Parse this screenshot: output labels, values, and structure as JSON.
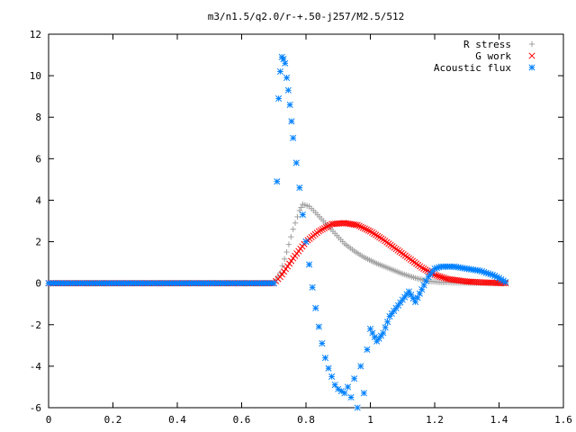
{
  "chart_data": {
    "type": "scatter",
    "title": "m3/n1.5/q2.0/r-+.50-j257/M2.5/512",
    "xlabel": "",
    "ylabel": "",
    "xlim": [
      0,
      1.6
    ],
    "ylim": [
      -6,
      12
    ],
    "x_ticks": [
      "0",
      "0.2",
      "0.4",
      "0.6",
      "0.8",
      "1",
      "1.2",
      "1.4",
      "1.6"
    ],
    "y_ticks": [
      "-6",
      "-4",
      "-2",
      "0",
      "2",
      "4",
      "6",
      "8",
      "10",
      "12"
    ],
    "grid": false,
    "legend_position": "top-right",
    "series": [
      {
        "name": "R stress",
        "marker": "plus",
        "color": "#a0a0a0",
        "points": [
          [
            0.0,
            0
          ],
          [
            0.7,
            0.0
          ],
          [
            0.72,
            0.5
          ],
          [
            0.74,
            1.5
          ],
          [
            0.76,
            2.6
          ],
          [
            0.78,
            3.5
          ],
          [
            0.79,
            3.8
          ],
          [
            0.81,
            3.7
          ],
          [
            0.83,
            3.4
          ],
          [
            0.86,
            2.9
          ],
          [
            0.89,
            2.4
          ],
          [
            0.92,
            1.9
          ],
          [
            0.95,
            1.55
          ],
          [
            0.98,
            1.25
          ],
          [
            1.02,
            0.95
          ],
          [
            1.06,
            0.7
          ],
          [
            1.1,
            0.45
          ],
          [
            1.14,
            0.25
          ],
          [
            1.18,
            0.1
          ],
          [
            1.22,
            0.04
          ],
          [
            1.3,
            0.01
          ],
          [
            1.42,
            0.0
          ]
        ]
      },
      {
        "name": "G work",
        "marker": "cross",
        "color": "#ff0000",
        "points": [
          [
            0.0,
            0
          ],
          [
            0.7,
            0.0
          ],
          [
            0.72,
            0.3
          ],
          [
            0.76,
            1.2
          ],
          [
            0.8,
            2.0
          ],
          [
            0.84,
            2.5
          ],
          [
            0.88,
            2.85
          ],
          [
            0.92,
            2.9
          ],
          [
            0.96,
            2.8
          ],
          [
            1.0,
            2.5
          ],
          [
            1.04,
            2.1
          ],
          [
            1.08,
            1.65
          ],
          [
            1.12,
            1.2
          ],
          [
            1.16,
            0.75
          ],
          [
            1.2,
            0.4
          ],
          [
            1.24,
            0.2
          ],
          [
            1.3,
            0.08
          ],
          [
            1.36,
            0.03
          ],
          [
            1.42,
            0.0
          ]
        ]
      },
      {
        "name": "Acoustic flux",
        "marker": "star",
        "color": "#0080ff",
        "points": [
          [
            0.0,
            0
          ],
          [
            0.7,
            0.0
          ],
          [
            0.71,
            4.9
          ],
          [
            0.715,
            8.9
          ],
          [
            0.72,
            10.2
          ],
          [
            0.725,
            10.9
          ],
          [
            0.73,
            10.8
          ],
          [
            0.735,
            10.6
          ],
          [
            0.74,
            9.9
          ],
          [
            0.745,
            9.3
          ],
          [
            0.75,
            8.6
          ],
          [
            0.755,
            7.8
          ],
          [
            0.76,
            7.0
          ],
          [
            0.77,
            5.8
          ],
          [
            0.78,
            4.6
          ],
          [
            0.79,
            3.3
          ],
          [
            0.8,
            2.0
          ],
          [
            0.81,
            0.9
          ],
          [
            0.82,
            -0.2
          ],
          [
            0.83,
            -1.2
          ],
          [
            0.84,
            -2.1
          ],
          [
            0.85,
            -2.9
          ],
          [
            0.86,
            -3.6
          ],
          [
            0.87,
            -4.1
          ],
          [
            0.88,
            -4.5
          ],
          [
            0.89,
            -4.9
          ],
          [
            0.9,
            -5.1
          ],
          [
            0.91,
            -5.2
          ],
          [
            0.92,
            -5.3
          ],
          [
            0.93,
            -5.0
          ],
          [
            0.94,
            -5.5
          ],
          [
            0.95,
            -4.6
          ],
          [
            0.96,
            -6.0
          ],
          [
            0.97,
            -4.0
          ],
          [
            0.98,
            -5.3
          ],
          [
            0.99,
            -3.2
          ],
          [
            1.0,
            -2.2
          ],
          [
            1.02,
            -2.8
          ],
          [
            1.04,
            -2.4
          ],
          [
            1.06,
            -1.6
          ],
          [
            1.08,
            -1.2
          ],
          [
            1.1,
            -0.8
          ],
          [
            1.12,
            -0.4
          ],
          [
            1.14,
            -0.9
          ],
          [
            1.16,
            -0.3
          ],
          [
            1.18,
            0.3
          ],
          [
            1.2,
            0.7
          ],
          [
            1.22,
            0.8
          ],
          [
            1.24,
            0.8
          ],
          [
            1.26,
            0.8
          ],
          [
            1.28,
            0.75
          ],
          [
            1.3,
            0.7
          ],
          [
            1.32,
            0.65
          ],
          [
            1.34,
            0.6
          ],
          [
            1.36,
            0.5
          ],
          [
            1.38,
            0.4
          ],
          [
            1.4,
            0.25
          ],
          [
            1.42,
            0.05
          ]
        ]
      }
    ]
  }
}
